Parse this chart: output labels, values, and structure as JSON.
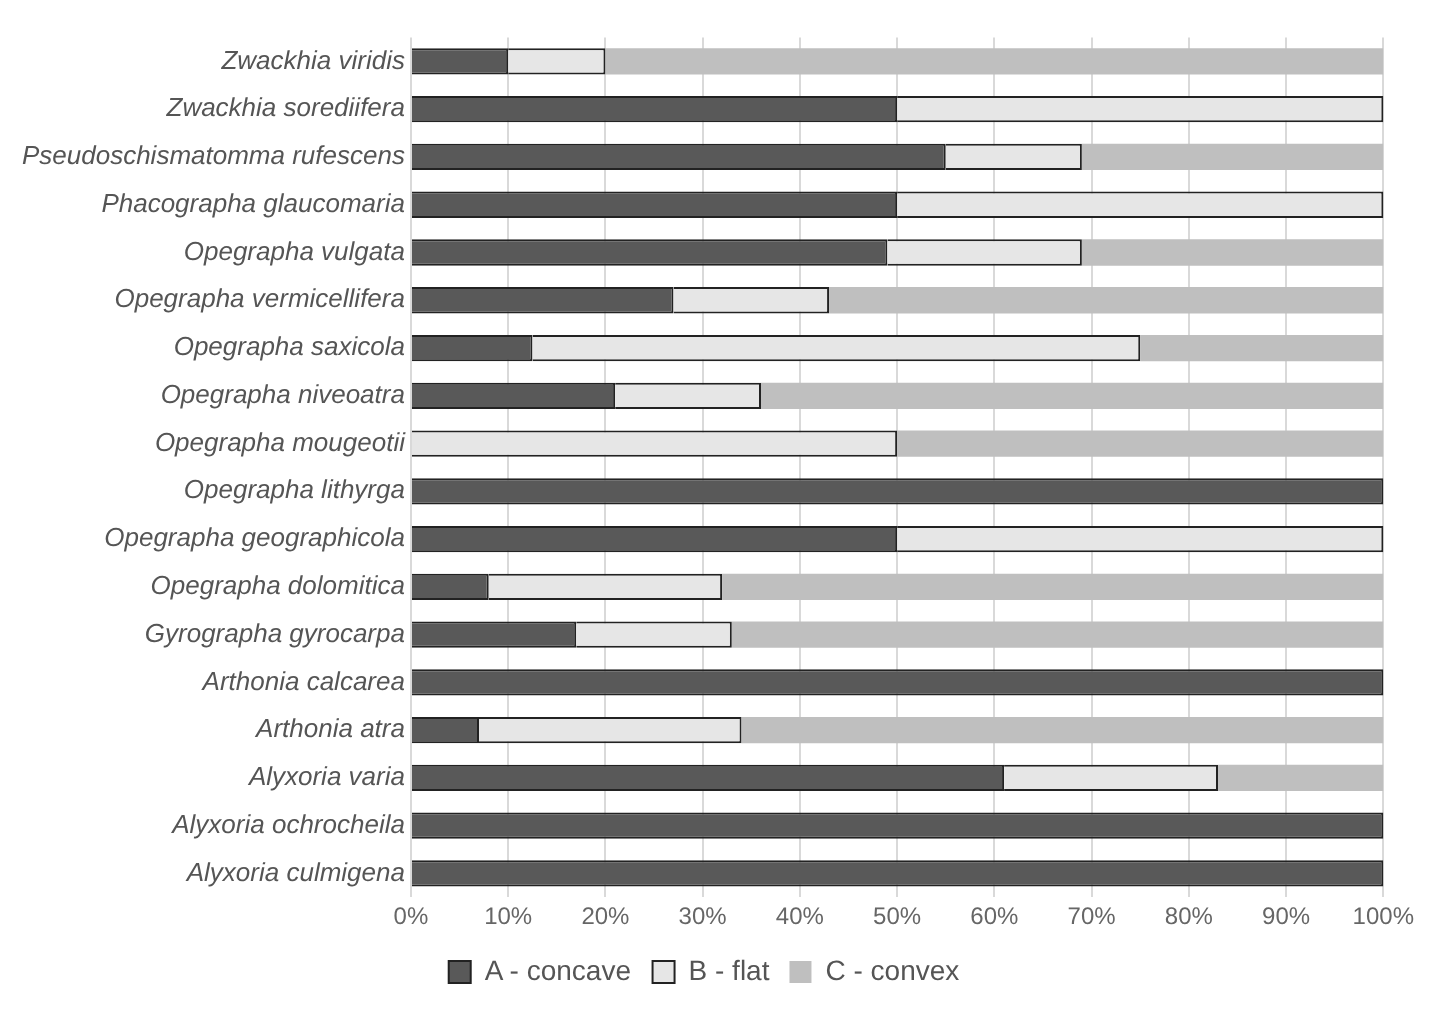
{
  "chart_data": {
    "type": "bar",
    "orientation": "horizontal",
    "stacked": true,
    "categories": [
      "Zwackhia viridis",
      "Zwackhia sorediifera",
      "Pseudoschismatomma rufescens",
      "Phacographa glaucomaria",
      "Opegrapha vulgata",
      "Opegrapha vermicellifera",
      "Opegrapha saxicola",
      "Opegrapha niveoatra",
      "Opegrapha mougeotii",
      "Opegrapha lithyrga",
      "Opegrapha geographicola",
      "Opegrapha dolomitica",
      "Gyrographa gyrocarpa",
      "Arthonia calcarea",
      "Arthonia atra",
      "Alyxoria varia",
      "Alyxoria ochrocheila",
      "Alyxoria culmigena"
    ],
    "series": [
      {
        "name": "A - concave",
        "color": "#595959",
        "values": [
          10,
          50,
          55,
          50,
          49,
          27,
          12.5,
          21,
          0,
          100,
          50,
          8,
          17,
          100,
          7,
          61,
          100,
          100
        ]
      },
      {
        "name": "B - flat",
        "color": "#e6e6e6",
        "values": [
          10,
          50,
          14,
          50,
          20,
          16,
          62.5,
          15,
          50,
          0,
          50,
          24,
          16,
          0,
          27,
          22,
          0,
          0
        ]
      },
      {
        "name": "C - convex",
        "color": "#bfbfbf",
        "values": [
          80,
          0,
          31,
          0,
          31,
          57,
          25,
          64,
          50,
          0,
          0,
          68,
          67,
          0,
          66,
          17,
          0,
          0
        ]
      }
    ],
    "xlim": [
      0,
      100
    ],
    "xticks": [
      {
        "value": 0,
        "label": "0%"
      },
      {
        "value": 10,
        "label": "10%"
      },
      {
        "value": 20,
        "label": "20%"
      },
      {
        "value": 30,
        "label": "30%"
      },
      {
        "value": 40,
        "label": "40%"
      },
      {
        "value": 50,
        "label": "50%"
      },
      {
        "value": 60,
        "label": "60%"
      },
      {
        "value": 70,
        "label": "70%"
      },
      {
        "value": 80,
        "label": "80%"
      },
      {
        "value": 90,
        "label": "90%"
      },
      {
        "value": 100,
        "label": "100%"
      }
    ],
    "grid": "x",
    "legend": "bottom"
  }
}
